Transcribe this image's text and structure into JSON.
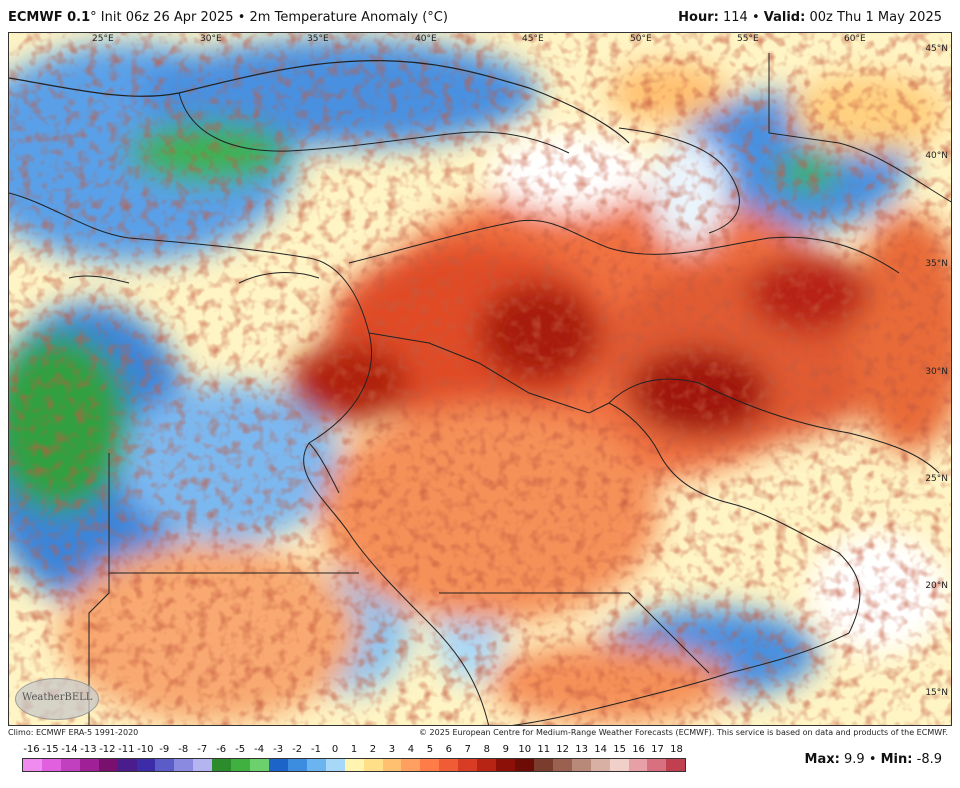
{
  "header": {
    "model": "ECMWF 0.1",
    "degree": "°",
    "init": "Init 06z 26 Apr 2025",
    "sep": "•",
    "field": "2m Temperature Anomaly (°C)",
    "hour_label": "Hour:",
    "hour": "114",
    "valid_label": "Valid:",
    "valid": "00z Thu 1 May 2025"
  },
  "longitudes": [
    "25°E",
    "30°E",
    "35°E",
    "40°E",
    "45°E",
    "50°E",
    "55°E",
    "60°E"
  ],
  "latitudes": [
    "45°N",
    "40°N",
    "35°N",
    "30°N",
    "25°N",
    "20°N",
    "15°N"
  ],
  "logo_text": "WeatherBELL",
  "footer": {
    "left": "Climo: ECMWF ERA-5 1991-2020",
    "right": "© 2025 European Centre for Medium-Range Weather Forecasts (ECMWF). This service is based on data and products of the ECMWF."
  },
  "colorscale": {
    "labels": [
      "-16",
      "-15",
      "-14",
      "-13",
      "-12",
      "-11",
      "-10",
      "-9",
      "-8",
      "-7",
      "-6",
      "-5",
      "-4",
      "-3",
      "-2",
      "-1",
      "0",
      "1",
      "2",
      "3",
      "4",
      "5",
      "6",
      "7",
      "8",
      "9",
      "10",
      "11",
      "12",
      "13",
      "14",
      "15",
      "16",
      "17",
      "18"
    ],
    "colors": [
      "#f08cf0",
      "#e060e0",
      "#c040c0",
      "#a02098",
      "#7a106e",
      "#4a1c8c",
      "#3c2ca8",
      "#5c5cc8",
      "#8a8ae0",
      "#b4b4f0",
      "#2c8c2c",
      "#40b040",
      "#6cd06c",
      "#1c64c8",
      "#3c8ce0",
      "#6cb4f0",
      "#a8d8f8",
      "#fff4b0",
      "#ffe088",
      "#ffc070",
      "#ffa060",
      "#ff7c48",
      "#f05c34",
      "#d83c24",
      "#b82414",
      "#8c1008",
      "#6c0c04",
      "#7a3c2c",
      "#9a6050",
      "#b88878",
      "#d8b0a4",
      "#f0d0c8",
      "#e8a0a8",
      "#d87080",
      "#c04050"
    ]
  },
  "stats": {
    "max_label": "Max:",
    "max": "9.9",
    "min_label": "Min:",
    "min": "-8.9"
  }
}
